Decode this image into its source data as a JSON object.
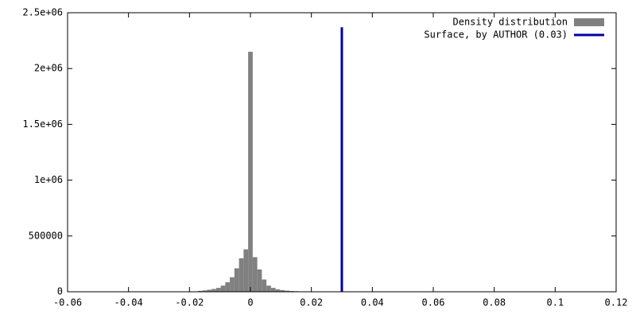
{
  "chart_data": {
    "type": "histogram",
    "bins": [
      -0.01875,
      -0.01725,
      -0.01575,
      -0.01425,
      -0.01275,
      -0.01125,
      -0.00975,
      -0.00825,
      -0.00675,
      -0.00525,
      -0.00375,
      -0.00225,
      -0.00075,
      0.00075,
      0.00225,
      0.00375,
      0.00525,
      0.00675,
      0.00825,
      0.00975,
      0.01125,
      0.01275,
      0.01425,
      0.01575,
      0.01725,
      0.01875
    ],
    "series": [
      {
        "name": "Density distribution",
        "color": "#808080",
        "values": [
          3000,
          8000,
          12000,
          18000,
          25000,
          35000,
          55000,
          85000,
          130000,
          210000,
          300000,
          380000,
          2150000,
          310000,
          200000,
          110000,
          55000,
          35000,
          22000,
          15000,
          10000,
          7000,
          5000,
          3000,
          2000
        ]
      }
    ],
    "vline": {
      "name": "Surface, by AUTHOR (0.03)",
      "color": "#0000a0",
      "x": 0.03,
      "y": [
        0,
        2370000
      ]
    },
    "xlim": [
      -0.06,
      0.12
    ],
    "xticks": [
      -0.06,
      -0.04,
      -0.02,
      0,
      0.02,
      0.04,
      0.06,
      0.08,
      0.1,
      0.12
    ],
    "ylim": [
      0,
      2500000
    ],
    "yticks": [
      0,
      500000,
      {
        "value": 1000000,
        "label": "1e+06"
      },
      {
        "value": 1500000,
        "label": "1.5e+06"
      },
      {
        "value": 2000000,
        "label": "2e+06"
      },
      {
        "value": 2500000,
        "label": "2.5e+06"
      }
    ],
    "legend": "top-right"
  }
}
